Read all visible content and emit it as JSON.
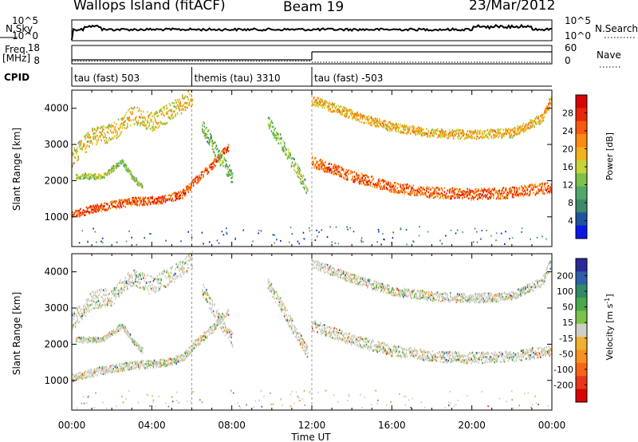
{
  "header": {
    "title": "Wallops Island (fitACF)",
    "beam": "Beam 19",
    "date": "23/Mar/2012"
  },
  "noise_panel": {
    "left_label": "N.Sky",
    "right_label": "N.Search",
    "ticks_left": [
      "10^5",
      "10^0"
    ],
    "ticks_right": [
      "10^5",
      "10^0"
    ]
  },
  "freq_panel": {
    "left_label_line1": "Freq.",
    "left_label_line2": "[MHz]",
    "right_label": "Nave",
    "ticks_left": [
      "18",
      "8"
    ],
    "ticks_right": [
      "60",
      "0"
    ],
    "freq_segments": [
      {
        "start_h": 0.0,
        "end_h": 12.0,
        "value_mhz": 10.5
      },
      {
        "start_h": 12.0,
        "end_h": 24.0,
        "value_mhz": 15.5
      }
    ],
    "nave_segments": [
      {
        "start_h": 0.0,
        "end_h": 12.0,
        "value": 10
      },
      {
        "start_h": 12.0,
        "end_h": 24.0,
        "value": 6
      }
    ]
  },
  "cpid": {
    "label": "CPID",
    "segments": [
      {
        "label": "tau (fast) 503",
        "start_h": 0.0,
        "end_h": 6.0
      },
      {
        "label": "themis (tau) 3310",
        "start_h": 6.0,
        "end_h": 12.0
      },
      {
        "label": "tau (fast) -503",
        "start_h": 12.0,
        "end_h": 24.0
      }
    ]
  },
  "chart_data": [
    {
      "type": "heatmap",
      "panel": "power",
      "xlabel": "Time UT",
      "ylabel": "Slant Range [km]",
      "xlim_hours": [
        0,
        24
      ],
      "ylim": [
        180,
        4500
      ],
      "x_ticks": [
        "00:00",
        "04:00",
        "08:00",
        "12:00",
        "16:00",
        "20:00",
        "00:00"
      ],
      "y_ticks": [
        1000,
        2000,
        3000,
        4000
      ],
      "colorbar_label": "Power [dB]",
      "colorbar_ticks": [
        4,
        8,
        12,
        16,
        20,
        24,
        28
      ],
      "colorbar_colors": [
        "#0a17e6",
        "#1f53a0",
        "#3c8a6a",
        "#4fa86a",
        "#7cc24a",
        "#c6d43a",
        "#f4b11e",
        "#f98a13",
        "#f65a0e",
        "#e92608",
        "#d80404"
      ],
      "echo_bands": [
        {
          "name": "low band",
          "points": [
            [
              0.0,
              1050
            ],
            [
              1.5,
              1250
            ],
            [
              3.0,
              1400
            ],
            [
              4.5,
              1450
            ],
            [
              5.5,
              1600
            ],
            [
              6.2,
              2000
            ],
            [
              7.0,
              2400
            ],
            [
              7.8,
              2900
            ]
          ],
          "width_km": 220,
          "level": 26
        },
        {
          "name": "upper band early",
          "points": [
            [
              0.0,
              2600
            ],
            [
              1.0,
              3200
            ],
            [
              2.0,
              3300
            ],
            [
              3.0,
              3800
            ],
            [
              4.0,
              3600
            ],
            [
              5.0,
              3900
            ],
            [
              6.0,
              4300
            ]
          ],
          "width_km": 500,
          "level": 18
        },
        {
          "name": "secondary early",
          "points": [
            [
              0.2,
              2100
            ],
            [
              1.5,
              2100
            ],
            [
              2.5,
              2500
            ],
            [
              3.0,
              2100
            ],
            [
              3.5,
              1800
            ]
          ],
          "width_km": 150,
          "level": 14
        },
        {
          "name": "arc left",
          "points": [
            [
              6.5,
              3500
            ],
            [
              7.0,
              3000
            ],
            [
              7.5,
              2500
            ],
            [
              8.0,
              2100
            ]
          ],
          "width_km": 400,
          "level": 12
        },
        {
          "name": "arc right",
          "points": [
            [
              9.8,
              3600
            ],
            [
              10.5,
              3000
            ],
            [
              11.0,
              2500
            ],
            [
              11.8,
              1700
            ]
          ],
          "width_km": 350,
          "level": 14
        },
        {
          "name": "lower band late",
          "points": [
            [
              12.0,
              2500
            ],
            [
              14.0,
              2100
            ],
            [
              16.0,
              1800
            ],
            [
              18.0,
              1650
            ],
            [
              20.0,
              1600
            ],
            [
              22.0,
              1650
            ],
            [
              24.0,
              1800
            ]
          ],
          "width_km": 300,
          "level": 25
        },
        {
          "name": "upper band late",
          "points": [
            [
              12.0,
              4200
            ],
            [
              14.0,
              3800
            ],
            [
              16.0,
              3450
            ],
            [
              18.0,
              3300
            ],
            [
              20.0,
              3250
            ],
            [
              22.0,
              3300
            ],
            [
              23.5,
              3700
            ],
            [
              24.0,
              4300
            ]
          ],
          "width_km": 250,
          "level": 20
        }
      ]
    },
    {
      "type": "heatmap",
      "panel": "velocity",
      "xlabel": "Time UT",
      "ylabel": "Slant Range [km]",
      "xlim_hours": [
        0,
        24
      ],
      "ylim": [
        180,
        4500
      ],
      "x_ticks": [
        "00:00",
        "04:00",
        "08:00",
        "12:00",
        "16:00",
        "20:00",
        "00:00"
      ],
      "y_ticks": [
        1000,
        2000,
        3000,
        4000
      ],
      "colorbar_label": "Velocity [m s^-1]",
      "colorbar_ticks": [
        "200",
        "100",
        "50",
        "15",
        "-15",
        "-50",
        "-100",
        "-200"
      ],
      "colorbar_colors": [
        "#2a2a9a",
        "#2f5fa8",
        "#2f8a6a",
        "#49a84a",
        "#7cc24a",
        "#cfcfc6",
        "#f0b030",
        "#f79222",
        "#f5661a",
        "#e9371a",
        "#d80404"
      ],
      "dominant_value_ms": 0
    }
  ]
}
